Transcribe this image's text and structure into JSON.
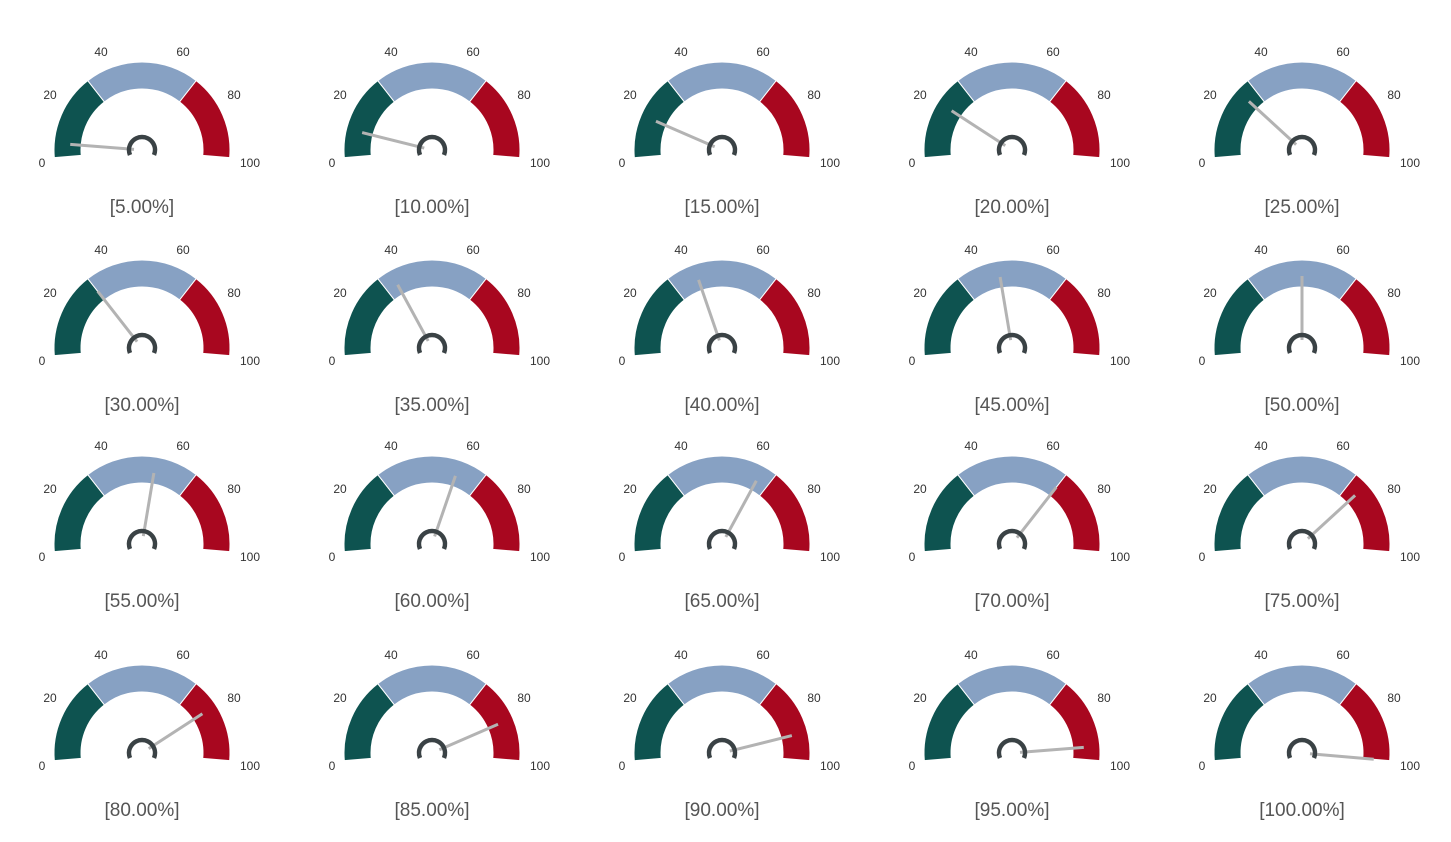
{
  "chart_data": {
    "type": "gauge",
    "min": 0,
    "max": 100,
    "tick_labels": [
      "0",
      "20",
      "40",
      "60",
      "80",
      "100"
    ],
    "bands": [
      {
        "from": 0,
        "to": 30,
        "color": "#0e5350"
      },
      {
        "from": 30,
        "to": 70,
        "color": "#87a1c3"
      },
      {
        "from": 70,
        "to": 100,
        "color": "#a8071f"
      }
    ],
    "needle_color": "#b3b3b3",
    "hub_color": "#3a4245",
    "gauges": [
      {
        "value": 5,
        "label": "[5.00%]"
      },
      {
        "value": 10,
        "label": "[10.00%]"
      },
      {
        "value": 15,
        "label": "[15.00%]"
      },
      {
        "value": 20,
        "label": "[20.00%]"
      },
      {
        "value": 25,
        "label": "[25.00%]"
      },
      {
        "value": 30,
        "label": "[30.00%]"
      },
      {
        "value": 35,
        "label": "[35.00%]"
      },
      {
        "value": 40,
        "label": "[40.00%]"
      },
      {
        "value": 45,
        "label": "[45.00%]"
      },
      {
        "value": 50,
        "label": "[50.00%]"
      },
      {
        "value": 55,
        "label": "[55.00%]"
      },
      {
        "value": 60,
        "label": "[60.00%]"
      },
      {
        "value": 65,
        "label": "[65.00%]"
      },
      {
        "value": 70,
        "label": "[70.00%]"
      },
      {
        "value": 75,
        "label": "[75.00%]"
      },
      {
        "value": 80,
        "label": "[80.00%]"
      },
      {
        "value": 85,
        "label": "[85.00%]"
      },
      {
        "value": 90,
        "label": "[90.00%]"
      },
      {
        "value": 95,
        "label": "[95.00%]"
      },
      {
        "value": 100,
        "label": "[100.00%]"
      }
    ]
  }
}
